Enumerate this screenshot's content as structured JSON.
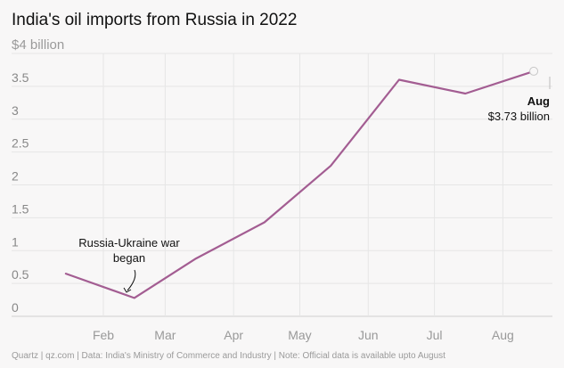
{
  "chart_data": {
    "type": "line",
    "title": "India's oil imports from Russia in 2022",
    "unit_label": "$4 billion",
    "y_ticks": [
      "0",
      "0.5",
      "1",
      "1.5",
      "2",
      "2.5",
      "3",
      "3.5"
    ],
    "x_ticks": [
      "Feb",
      "Mar",
      "Apr",
      "May",
      "Jun",
      "Jul",
      "Aug"
    ],
    "ylim": [
      0,
      4
    ],
    "grid": true,
    "series": [
      {
        "color": "#a35d92",
        "points": [
          {
            "x": "2022-01-15",
            "y": 0.65
          },
          {
            "x": "2022-02-15",
            "y": 0.28
          },
          {
            "x": "2022-03-15",
            "y": 0.88
          },
          {
            "x": "2022-04-15",
            "y": 1.43
          },
          {
            "x": "2022-05-15",
            "y": 2.29
          },
          {
            "x": "2022-06-15",
            "y": 3.6
          },
          {
            "x": "2022-07-15",
            "y": 3.39
          },
          {
            "x": "2022-08-15",
            "y": 3.73
          }
        ]
      }
    ],
    "annotations": {
      "war": {
        "line1": "Russia-Ukraine war",
        "line2": "began"
      },
      "end": {
        "month": "Aug",
        "value": "$3.73 billion"
      }
    },
    "footer": "Quartz | qz.com | Data: India's Ministry of Commerce and Industry | Note: Official data is available upto August"
  }
}
